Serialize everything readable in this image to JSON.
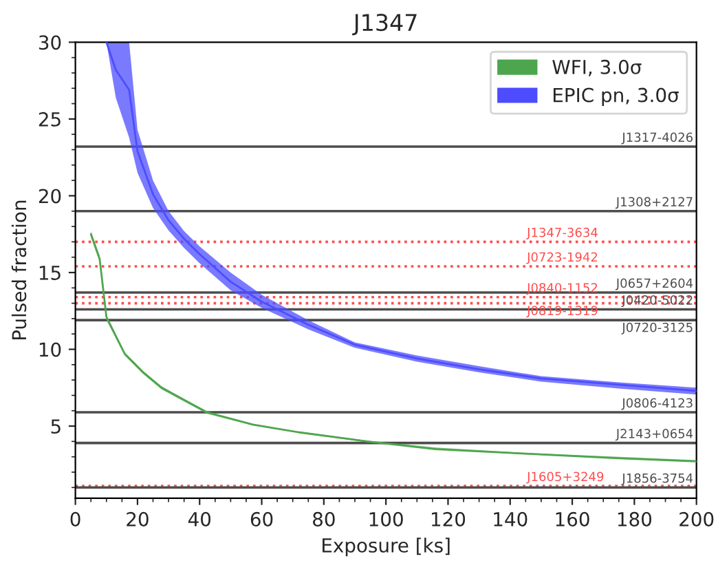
{
  "chart_data": {
    "type": "line",
    "title": "J1347",
    "xlabel": "Exposure [ks]",
    "ylabel": "Pulsed fraction",
    "xlim": [
      0,
      200
    ],
    "xticks": [
      0,
      20,
      40,
      60,
      80,
      100,
      120,
      140,
      160,
      180,
      200
    ],
    "ylim": [
      0.3,
      30
    ],
    "yticks": [
      5,
      10,
      15,
      20,
      25,
      30
    ],
    "legend": "top right",
    "grid": false,
    "series": [
      {
        "name": "WFI, 3.0σ",
        "color": "#4da64d",
        "x": [
          5,
          7.8,
          10,
          15.9,
          21.8,
          27.7,
          42.4,
          57.1,
          71.8,
          94,
          116,
          145,
          175,
          200
        ],
        "values": [
          17.5,
          15.9,
          12.1,
          9.7,
          8.5,
          7.5,
          5.9,
          5.1,
          4.6,
          4.0,
          3.5,
          3.2,
          2.9,
          2.7
        ],
        "lower": [
          17.3,
          15.7,
          11.9,
          9.6,
          8.4,
          7.4,
          5.8,
          5.05,
          4.55,
          3.95,
          3.5,
          3.15,
          2.9,
          2.68
        ],
        "upper": [
          17.7,
          16.1,
          12.2,
          9.8,
          8.6,
          7.6,
          5.92,
          5.15,
          4.65,
          4.05,
          3.6,
          3.25,
          3.0,
          2.78
        ]
      },
      {
        "name": "EPIC pn, 3.0σ",
        "color": "#4d4dff",
        "x": [
          10,
          13,
          17.3,
          20,
          25,
          30,
          35,
          40,
          50,
          60,
          75,
          90,
          110,
          130,
          150,
          175,
          200
        ],
        "values": [
          30,
          28.2,
          26.9,
          22.9,
          20.1,
          18.4,
          17.2,
          16.2,
          14.4,
          13.1,
          11.6,
          10.3,
          9.4,
          8.7,
          8.1,
          7.7,
          7.3
        ],
        "lower": [
          30,
          26.4,
          23.8,
          21.5,
          19.2,
          17.75,
          16.6,
          15.6,
          13.85,
          12.7,
          11.3,
          10.1,
          9.2,
          8.5,
          7.9,
          7.45,
          7.05
        ],
        "upper": [
          30,
          30,
          30,
          24.3,
          21,
          19,
          17.7,
          16.7,
          15,
          13.55,
          11.9,
          10.45,
          9.6,
          8.9,
          8.25,
          7.85,
          7.5
        ]
      }
    ],
    "ref_lines": [
      {
        "axis": "y",
        "value": 23.2,
        "label": "J1317-4026",
        "color": "#4d4d4d",
        "line_style": "solid"
      },
      {
        "axis": "y",
        "value": 19.0,
        "label": "J1308+2127",
        "color": "#4d4d4d",
        "line_style": "solid"
      },
      {
        "axis": "y",
        "value": 17.0,
        "label": "J1347-3634",
        "color": "#ff4d4d",
        "line_style": "dotted"
      },
      {
        "axis": "y",
        "value": 15.4,
        "label": "J0723-1942",
        "color": "#ff4d4d",
        "line_style": "dotted"
      },
      {
        "axis": "y",
        "value": 13.7,
        "label": "J0657+2604",
        "color": "#4d4d4d",
        "line_style": "solid"
      },
      {
        "axis": "y",
        "value": 13.4,
        "label": "J0840-1152",
        "color": "#ff4d4d",
        "line_style": "dotted"
      },
      {
        "axis": "y",
        "value": 13.0,
        "label": "J0819-1319",
        "color": "#ff4d4d",
        "line_style": "dotted"
      },
      {
        "axis": "y",
        "value": 12.6,
        "label": "J0420-5022",
        "color": "#4d4d4d",
        "line_style": "solid"
      },
      {
        "axis": "y",
        "value": 11.9,
        "label": "J0720-3125",
        "color": "#4d4d4d",
        "line_style": "solid"
      },
      {
        "axis": "y",
        "value": 5.9,
        "label": "J0806-4123",
        "color": "#4d4d4d",
        "line_style": "solid"
      },
      {
        "axis": "y",
        "value": 3.9,
        "label": "J2143+0654",
        "color": "#4d4d4d",
        "line_style": "solid"
      },
      {
        "axis": "y",
        "value": 1.1,
        "label": "J1605+3249",
        "color": "#ff4d4d",
        "line_style": "dotted"
      },
      {
        "axis": "y",
        "value": 1.0,
        "label": "J1856-3754",
        "color": "#4d4d4d",
        "line_style": "solid"
      }
    ]
  }
}
